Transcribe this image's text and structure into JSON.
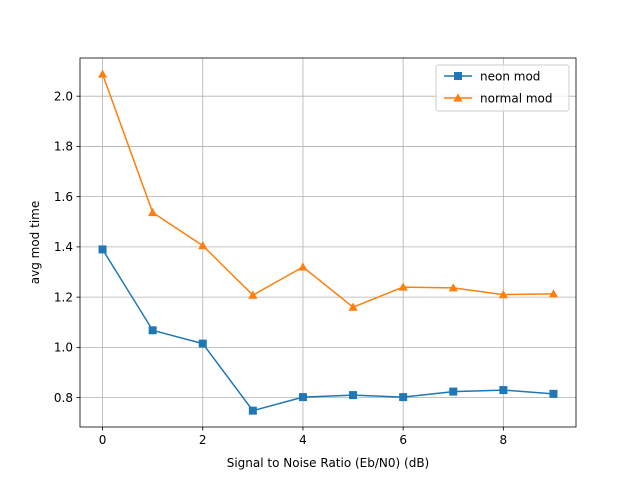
{
  "chart_data": {
    "type": "line",
    "title": "",
    "xlabel": "Signal to Noise Ratio (Eb/N0) (dB)",
    "ylabel": "avg mod time",
    "xlim": [
      -0.45,
      9.45
    ],
    "ylim": [
      0.683,
      2.152
    ],
    "xticks": [
      0,
      2,
      4,
      6,
      8
    ],
    "yticks": [
      0.8,
      1.0,
      1.2,
      1.4,
      1.6,
      1.8,
      2.0
    ],
    "xtick_labels": [
      "0",
      "2",
      "4",
      "6",
      "8"
    ],
    "ytick_labels": [
      "0.8",
      "1.0",
      "1.2",
      "1.4",
      "1.6",
      "1.8",
      "2.0"
    ],
    "grid": true,
    "legend_position": "top-right",
    "x": [
      0,
      1,
      2,
      3,
      4,
      5,
      6,
      7,
      8,
      9
    ],
    "series": [
      {
        "name": "neon mod",
        "color": "#1f77b4",
        "marker": "square",
        "values": [
          1.39,
          1.068,
          1.015,
          0.748,
          0.802,
          0.81,
          0.802,
          0.824,
          0.83,
          0.815
        ]
      },
      {
        "name": "normal mod",
        "color": "#ff7f0e",
        "marker": "triangle",
        "values": [
          2.088,
          1.537,
          1.405,
          1.208,
          1.32,
          1.16,
          1.24,
          1.237,
          1.21,
          1.213
        ]
      }
    ]
  }
}
